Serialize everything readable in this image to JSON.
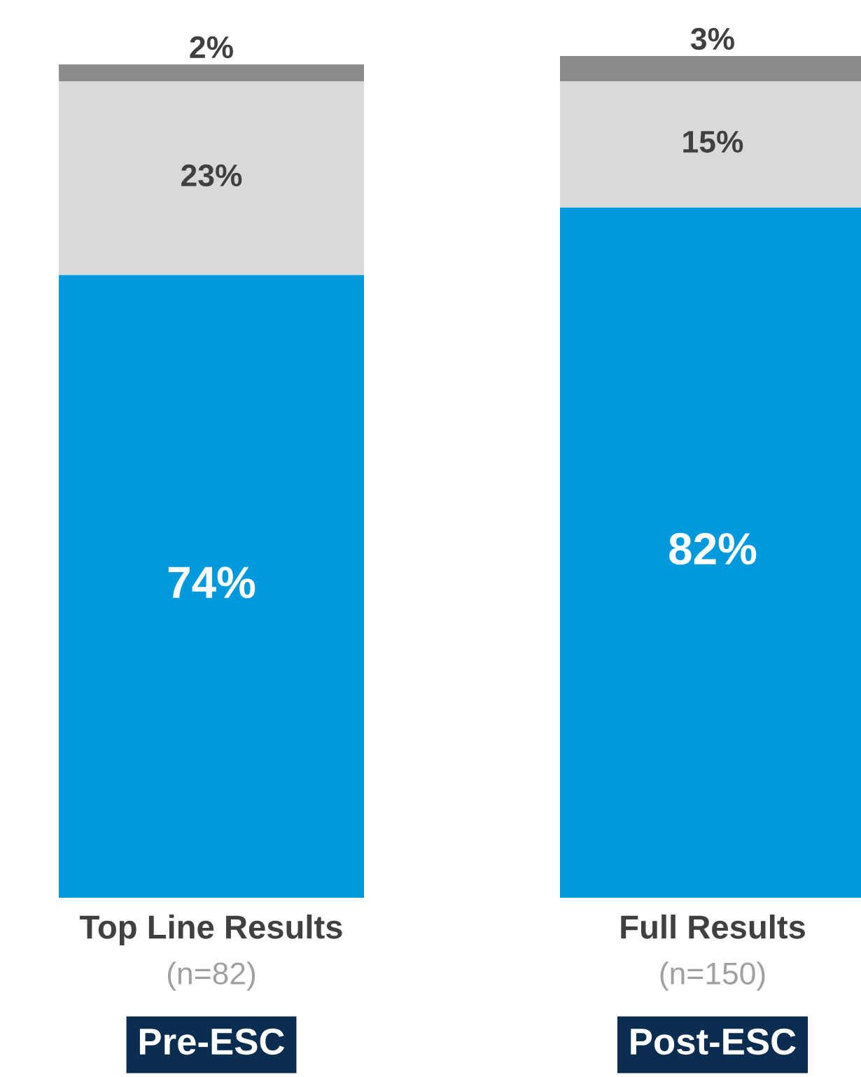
{
  "chart_data": {
    "type": "bar",
    "stacked": true,
    "categories": [
      "Top Line Results",
      "Full Results"
    ],
    "series": [
      {
        "color": "#0099dd",
        "values": [
          74,
          82
        ],
        "value_labels": [
          "74%",
          "82%"
        ]
      },
      {
        "color": "#d9d9d9",
        "values": [
          23,
          15
        ],
        "value_labels": [
          "23%",
          "15%"
        ]
      },
      {
        "color": "#8c8c8c",
        "values": [
          2,
          3
        ],
        "value_labels": [
          "2%",
          "3%"
        ]
      }
    ],
    "legend": false,
    "annotations": [
      "(n=82)",
      "(n=150)",
      "Pre-ESC",
      "Post-ESC"
    ]
  }
}
